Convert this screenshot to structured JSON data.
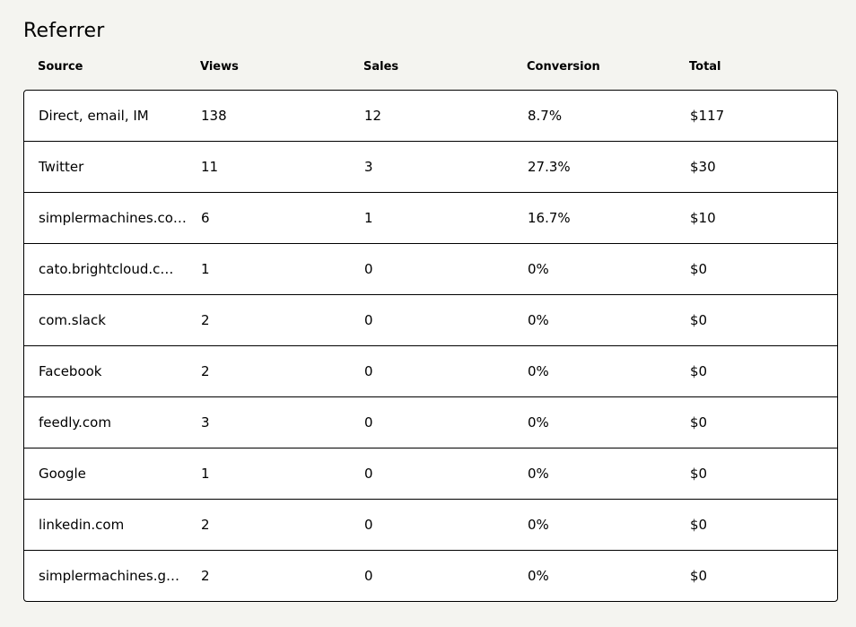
{
  "title": "Referrer",
  "columns": [
    "Source",
    "Views",
    "Sales",
    "Conversion",
    "Total"
  ],
  "rows": [
    {
      "source": "Direct, email, IM",
      "views": "138",
      "sales": "12",
      "conversion": "8.7%",
      "total": "$117"
    },
    {
      "source": "Twitter",
      "views": "11",
      "sales": "3",
      "conversion": "27.3%",
      "total": "$30"
    },
    {
      "source": "simplermachines.co…",
      "views": "6",
      "sales": "1",
      "conversion": "16.7%",
      "total": "$10"
    },
    {
      "source": "cato.brightcloud.c…",
      "views": "1",
      "sales": "0",
      "conversion": "0%",
      "total": "$0"
    },
    {
      "source": "com.slack",
      "views": "2",
      "sales": "0",
      "conversion": "0%",
      "total": "$0"
    },
    {
      "source": "Facebook",
      "views": "2",
      "sales": "0",
      "conversion": "0%",
      "total": "$0"
    },
    {
      "source": "feedly.com",
      "views": "3",
      "sales": "0",
      "conversion": "0%",
      "total": "$0"
    },
    {
      "source": "Google",
      "views": "1",
      "sales": "0",
      "conversion": "0%",
      "total": "$0"
    },
    {
      "source": "linkedin.com",
      "views": "2",
      "sales": "0",
      "conversion": "0%",
      "total": "$0"
    },
    {
      "source": "simplermachines.g…",
      "views": "2",
      "sales": "0",
      "conversion": "0%",
      "total": "$0"
    }
  ]
}
